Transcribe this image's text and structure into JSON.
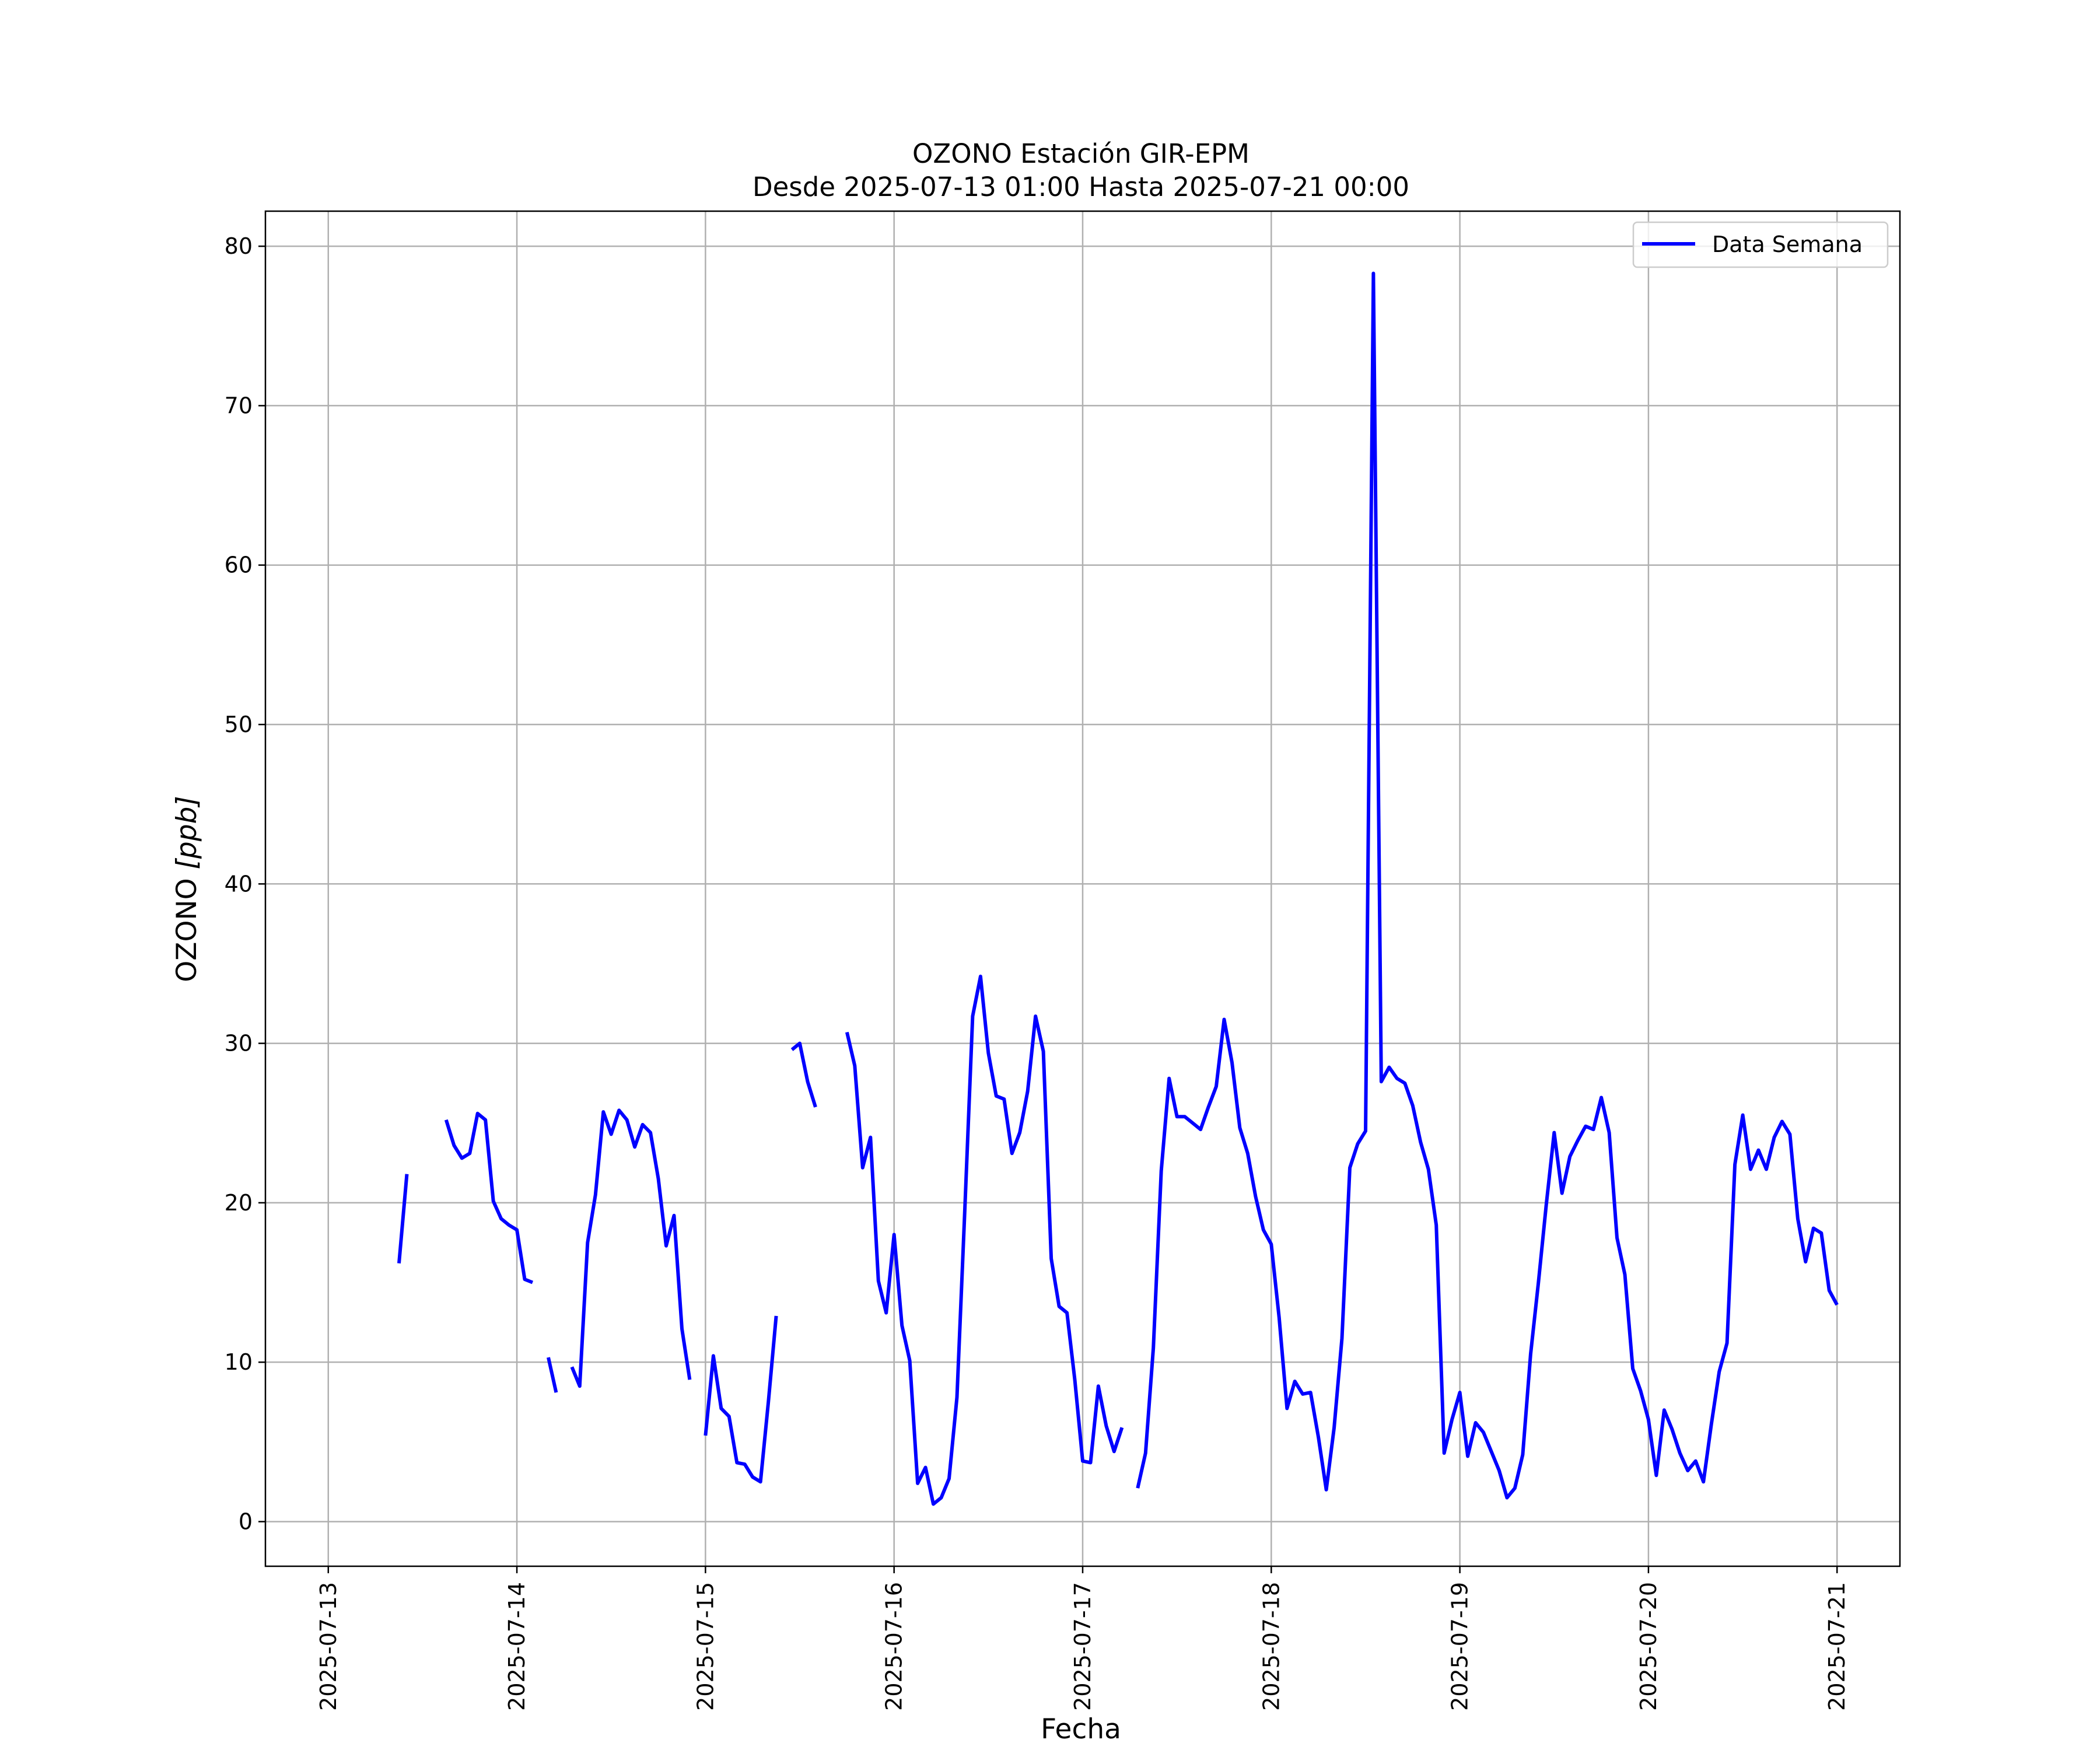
{
  "chart_data": {
    "type": "line",
    "title": "OZONO Estación GIR-EPM",
    "subtitle": "Desde 2025-07-13 01:00 Hasta 2025-07-21 00:00",
    "xlabel": "Fecha",
    "ylabel": "OZONO [ppb]",
    "ylabel_parts": {
      "base": "OZONO ",
      "unit": "[ppb]"
    },
    "xlim": [
      "2025-07-12T16:00",
      "2025-07-21T08:00"
    ],
    "ylim": [
      -2.8,
      82.2
    ],
    "x_ticks": [
      "2025-07-13",
      "2025-07-14",
      "2025-07-15",
      "2025-07-16",
      "2025-07-17",
      "2025-07-18",
      "2025-07-19",
      "2025-07-20",
      "2025-07-21"
    ],
    "y_ticks": [
      0,
      10,
      20,
      30,
      40,
      50,
      60,
      70,
      80
    ],
    "grid": true,
    "legend": {
      "position": "top-right",
      "entries": [
        "Data Semana"
      ]
    },
    "series": [
      {
        "name": "Data Semana",
        "color": "#0000ff",
        "segments": [
          [
            [
              "2025-07-13T09:00",
              16.2
            ],
            [
              "2025-07-13T10:00",
              21.8
            ]
          ],
          [
            [
              "2025-07-13T15:00",
              25.2
            ],
            [
              "2025-07-13T16:00",
              23.6
            ],
            [
              "2025-07-13T17:00",
              22.8
            ],
            [
              "2025-07-13T18:00",
              23.1
            ],
            [
              "2025-07-13T19:00",
              25.6
            ],
            [
              "2025-07-13T20:00",
              25.2
            ],
            [
              "2025-07-13T21:00",
              20.1
            ],
            [
              "2025-07-13T22:00",
              19.0
            ],
            [
              "2025-07-13T23:00",
              18.6
            ],
            [
              "2025-07-14T00:00",
              18.3
            ],
            [
              "2025-07-14T01:00",
              15.2
            ],
            [
              "2025-07-14T02:00",
              15.0
            ]
          ],
          [
            [
              "2025-07-14T04:00",
              10.3
            ],
            [
              "2025-07-14T05:00",
              8.1
            ]
          ],
          [
            [
              "2025-07-14T07:00",
              9.7
            ],
            [
              "2025-07-14T08:00",
              8.5
            ],
            [
              "2025-07-14T09:00",
              17.5
            ],
            [
              "2025-07-14T10:00",
              20.5
            ],
            [
              "2025-07-14T11:00",
              25.7
            ],
            [
              "2025-07-14T12:00",
              24.3
            ],
            [
              "2025-07-14T13:00",
              25.8
            ],
            [
              "2025-07-14T14:00",
              25.2
            ],
            [
              "2025-07-14T15:00",
              23.5
            ],
            [
              "2025-07-14T16:00",
              24.9
            ],
            [
              "2025-07-14T17:00",
              24.4
            ],
            [
              "2025-07-14T18:00",
              21.5
            ],
            [
              "2025-07-14T19:00",
              17.3
            ],
            [
              "2025-07-14T20:00",
              19.2
            ],
            [
              "2025-07-14T21:00",
              12.1
            ],
            [
              "2025-07-14T22:00",
              8.9
            ]
          ],
          [
            [
              "2025-07-15T00:00",
              5.4
            ],
            [
              "2025-07-15T01:00",
              10.4
            ],
            [
              "2025-07-15T02:00",
              7.1
            ],
            [
              "2025-07-15T03:00",
              6.6
            ],
            [
              "2025-07-15T04:00",
              3.7
            ],
            [
              "2025-07-15T05:00",
              3.6
            ],
            [
              "2025-07-15T06:00",
              2.8
            ],
            [
              "2025-07-15T07:00",
              2.5
            ],
            [
              "2025-07-15T08:00",
              7.5
            ],
            [
              "2025-07-15T09:00",
              12.9
            ]
          ],
          [
            [
              "2025-07-15T11:00",
              29.6
            ],
            [
              "2025-07-15T12:00",
              30.0
            ],
            [
              "2025-07-15T13:00",
              27.6
            ],
            [
              "2025-07-15T14:00",
              26.0
            ]
          ],
          [
            [
              "2025-07-15T18:00",
              30.7
            ],
            [
              "2025-07-15T19:00",
              28.6
            ],
            [
              "2025-07-15T20:00",
              22.2
            ],
            [
              "2025-07-15T21:00",
              24.1
            ],
            [
              "2025-07-15T22:00",
              15.1
            ],
            [
              "2025-07-15T23:00",
              13.1
            ],
            [
              "2025-07-16T00:00",
              18.0
            ],
            [
              "2025-07-16T01:00",
              12.3
            ],
            [
              "2025-07-16T02:00",
              10.1
            ],
            [
              "2025-07-16T03:00",
              2.4
            ],
            [
              "2025-07-16T04:00",
              3.4
            ],
            [
              "2025-07-16T05:00",
              1.1
            ],
            [
              "2025-07-16T06:00",
              1.5
            ],
            [
              "2025-07-16T07:00",
              2.7
            ],
            [
              "2025-07-16T08:00",
              7.8
            ],
            [
              "2025-07-16T09:00",
              19.5
            ],
            [
              "2025-07-16T10:00",
              31.7
            ],
            [
              "2025-07-16T11:00",
              34.2
            ],
            [
              "2025-07-16T12:00",
              29.4
            ],
            [
              "2025-07-16T13:00",
              26.7
            ],
            [
              "2025-07-16T14:00",
              26.5
            ],
            [
              "2025-07-16T15:00",
              23.1
            ],
            [
              "2025-07-16T16:00",
              24.4
            ],
            [
              "2025-07-16T17:00",
              27.0
            ],
            [
              "2025-07-16T18:00",
              31.7
            ],
            [
              "2025-07-16T19:00",
              29.5
            ],
            [
              "2025-07-16T20:00",
              16.5
            ],
            [
              "2025-07-16T21:00",
              13.5
            ],
            [
              "2025-07-16T22:00",
              13.1
            ],
            [
              "2025-07-16T23:00",
              8.9
            ],
            [
              "2025-07-17T00:00",
              3.8
            ],
            [
              "2025-07-17T01:00",
              3.7
            ],
            [
              "2025-07-17T02:00",
              8.5
            ],
            [
              "2025-07-17T03:00",
              6.0
            ],
            [
              "2025-07-17T04:00",
              4.4
            ],
            [
              "2025-07-17T05:00",
              5.9
            ]
          ],
          [
            [
              "2025-07-17T07:00",
              2.1
            ],
            [
              "2025-07-17T08:00",
              4.3
            ],
            [
              "2025-07-17T09:00",
              10.9
            ],
            [
              "2025-07-17T10:00",
              22.0
            ],
            [
              "2025-07-17T11:00",
              27.8
            ],
            [
              "2025-07-17T12:00",
              25.4
            ],
            [
              "2025-07-17T13:00",
              25.4
            ],
            [
              "2025-07-17T14:00",
              25.0
            ],
            [
              "2025-07-17T15:00",
              24.6
            ],
            [
              "2025-07-17T16:00",
              26.0
            ],
            [
              "2025-07-17T17:00",
              27.3
            ],
            [
              "2025-07-17T18:00",
              31.5
            ],
            [
              "2025-07-17T19:00",
              28.8
            ],
            [
              "2025-07-17T20:00",
              24.7
            ],
            [
              "2025-07-17T21:00",
              23.1
            ],
            [
              "2025-07-17T22:00",
              20.4
            ],
            [
              "2025-07-17T23:00",
              18.3
            ],
            [
              "2025-07-18T00:00",
              17.4
            ],
            [
              "2025-07-18T01:00",
              12.8
            ],
            [
              "2025-07-18T02:00",
              7.1
            ],
            [
              "2025-07-18T03:00",
              8.8
            ],
            [
              "2025-07-18T04:00",
              8.0
            ],
            [
              "2025-07-18T05:00",
              8.1
            ],
            [
              "2025-07-18T06:00",
              5.3
            ],
            [
              "2025-07-18T07:00",
              2.0
            ],
            [
              "2025-07-18T08:00",
              5.9
            ],
            [
              "2025-07-18T09:00",
              11.5
            ],
            [
              "2025-07-18T10:00",
              22.2
            ],
            [
              "2025-07-18T11:00",
              23.7
            ],
            [
              "2025-07-18T12:00",
              24.5
            ],
            [
              "2025-07-18T13:00",
              78.3
            ],
            [
              "2025-07-18T14:00",
              27.6
            ],
            [
              "2025-07-18T15:00",
              28.5
            ],
            [
              "2025-07-18T16:00",
              27.8
            ],
            [
              "2025-07-18T17:00",
              27.5
            ],
            [
              "2025-07-18T18:00",
              26.1
            ],
            [
              "2025-07-18T19:00",
              23.8
            ],
            [
              "2025-07-18T20:00",
              22.1
            ],
            [
              "2025-07-18T21:00",
              18.6
            ],
            [
              "2025-07-18T22:00",
              4.3
            ],
            [
              "2025-07-18T23:00",
              6.4
            ],
            [
              "2025-07-19T00:00",
              8.1
            ],
            [
              "2025-07-19T01:00",
              4.1
            ],
            [
              "2025-07-19T02:00",
              6.2
            ],
            [
              "2025-07-19T03:00",
              5.6
            ],
            [
              "2025-07-19T04:00",
              4.4
            ],
            [
              "2025-07-19T05:00",
              3.2
            ],
            [
              "2025-07-19T06:00",
              1.5
            ],
            [
              "2025-07-19T07:00",
              2.1
            ],
            [
              "2025-07-19T08:00",
              4.2
            ],
            [
              "2025-07-19T09:00",
              10.5
            ],
            [
              "2025-07-19T10:00",
              15.0
            ],
            [
              "2025-07-19T11:00",
              19.9
            ],
            [
              "2025-07-19T12:00",
              24.4
            ],
            [
              "2025-07-19T13:00",
              20.6
            ],
            [
              "2025-07-19T14:00",
              22.9
            ],
            [
              "2025-07-19T15:00",
              23.9
            ],
            [
              "2025-07-19T16:00",
              24.8
            ],
            [
              "2025-07-19T17:00",
              24.6
            ],
            [
              "2025-07-19T18:00",
              26.6
            ],
            [
              "2025-07-19T19:00",
              24.4
            ],
            [
              "2025-07-19T20:00",
              17.8
            ],
            [
              "2025-07-19T21:00",
              15.5
            ],
            [
              "2025-07-19T22:00",
              9.6
            ],
            [
              "2025-07-19T23:00",
              8.2
            ],
            [
              "2025-07-20T00:00",
              6.4
            ],
            [
              "2025-07-20T01:00",
              2.9
            ],
            [
              "2025-07-20T02:00",
              7.0
            ],
            [
              "2025-07-20T03:00",
              5.8
            ],
            [
              "2025-07-20T04:00",
              4.3
            ],
            [
              "2025-07-20T05:00",
              3.2
            ],
            [
              "2025-07-20T06:00",
              3.8
            ],
            [
              "2025-07-20T07:00",
              2.5
            ],
            [
              "2025-07-20T08:00",
              6.1
            ],
            [
              "2025-07-20T09:00",
              9.4
            ],
            [
              "2025-07-20T10:00",
              11.2
            ],
            [
              "2025-07-20T11:00",
              22.4
            ],
            [
              "2025-07-20T12:00",
              25.5
            ],
            [
              "2025-07-20T13:00",
              22.1
            ],
            [
              "2025-07-20T14:00",
              23.3
            ],
            [
              "2025-07-20T15:00",
              22.1
            ],
            [
              "2025-07-20T16:00",
              24.1
            ],
            [
              "2025-07-20T17:00",
              25.1
            ],
            [
              "2025-07-20T18:00",
              24.3
            ],
            [
              "2025-07-20T19:00",
              19.0
            ],
            [
              "2025-07-20T20:00",
              16.3
            ],
            [
              "2025-07-20T21:00",
              18.4
            ],
            [
              "2025-07-20T22:00",
              18.1
            ],
            [
              "2025-07-20T23:00",
              14.5
            ],
            [
              "2025-07-21T00:00",
              13.6
            ]
          ]
        ]
      }
    ]
  }
}
